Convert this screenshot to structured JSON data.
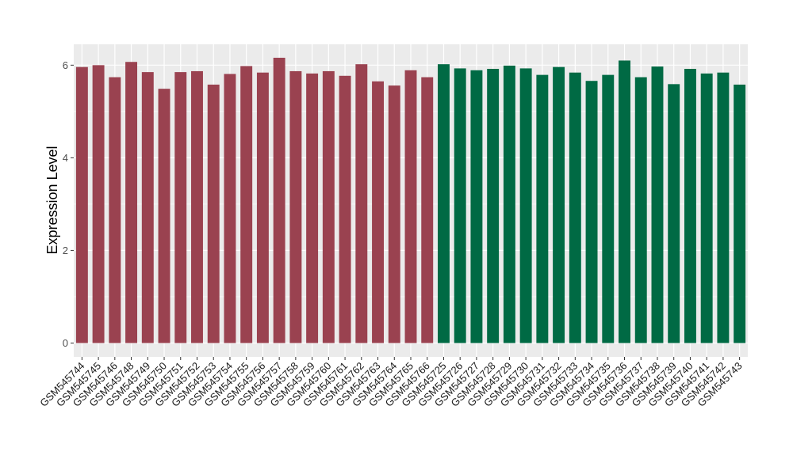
{
  "chart_data": {
    "type": "bar",
    "title": "",
    "xlabel": "",
    "ylabel": "Expression Level",
    "ylim": [
      -0.3,
      6.45
    ],
    "yticks": [
      0,
      2,
      4,
      6
    ],
    "grid": true,
    "categories": [
      "GSM545744",
      "GSM545745",
      "GSM545746",
      "GSM545748",
      "GSM545749",
      "GSM545750",
      "GSM545751",
      "GSM545752",
      "GSM545753",
      "GSM545754",
      "GSM545755",
      "GSM545756",
      "GSM545757",
      "GSM545758",
      "GSM545759",
      "GSM545760",
      "GSM545761",
      "GSM545762",
      "GSM545763",
      "GSM545764",
      "GSM545765",
      "GSM545766",
      "GSM545725",
      "GSM545726",
      "GSM545727",
      "GSM545728",
      "GSM545729",
      "GSM545730",
      "GSM545731",
      "GSM545732",
      "GSM545733",
      "GSM545734",
      "GSM545735",
      "GSM545736",
      "GSM545737",
      "GSM545738",
      "GSM545739",
      "GSM545740",
      "GSM545741",
      "GSM545742",
      "GSM545743"
    ],
    "values": [
      5.96,
      6.0,
      5.74,
      6.07,
      5.85,
      5.49,
      5.85,
      5.87,
      5.58,
      5.81,
      5.98,
      5.84,
      6.16,
      5.87,
      5.82,
      5.87,
      5.77,
      6.02,
      5.65,
      5.56,
      5.89,
      5.74,
      6.02,
      5.93,
      5.89,
      5.92,
      5.99,
      5.93,
      5.79,
      5.96,
      5.84,
      5.66,
      5.79,
      6.1,
      5.74,
      5.97,
      5.59,
      5.92,
      5.82,
      5.84,
      5.58
    ],
    "colors": [
      "#9a4250",
      "#9a4250",
      "#9a4250",
      "#9a4250",
      "#9a4250",
      "#9a4250",
      "#9a4250",
      "#9a4250",
      "#9a4250",
      "#9a4250",
      "#9a4250",
      "#9a4250",
      "#9a4250",
      "#9a4250",
      "#9a4250",
      "#9a4250",
      "#9a4250",
      "#9a4250",
      "#9a4250",
      "#9a4250",
      "#9a4250",
      "#9a4250",
      "#006a44",
      "#006a44",
      "#006a44",
      "#006a44",
      "#006a44",
      "#006a44",
      "#006a44",
      "#006a44",
      "#006a44",
      "#006a44",
      "#006a44",
      "#006a44",
      "#006a44",
      "#006a44",
      "#006a44",
      "#006a44",
      "#006a44",
      "#006a44",
      "#006a44"
    ],
    "panel_background": "#ebebeb",
    "gridline_color": "#ffffff"
  }
}
